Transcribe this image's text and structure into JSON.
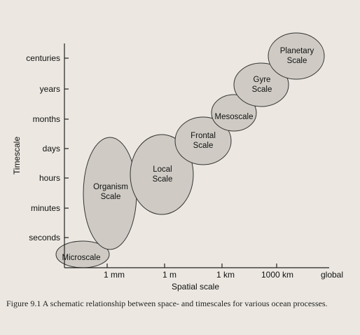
{
  "chart_data": {
    "type": "diagram",
    "xlabel": "Spatial scale",
    "ylabel": "Timescale",
    "x_ticks": [
      "1 mm",
      "1 m",
      "1 km",
      "1000 km",
      "global"
    ],
    "y_ticks": [
      "centuries",
      "years",
      "months",
      "days",
      "hours",
      "minutes",
      "seconds"
    ],
    "processes": [
      {
        "id": "microscale",
        "label": "Microscale"
      },
      {
        "id": "organism",
        "label": "Organism\nScale"
      },
      {
        "id": "local",
        "label": "Local\nScale"
      },
      {
        "id": "frontal",
        "label": "Frontal\nScale"
      },
      {
        "id": "mesoscale",
        "label": "Mesoscale"
      },
      {
        "id": "gyre",
        "label": "Gyre\nScale"
      },
      {
        "id": "planetary",
        "label": "Planetary\nScale"
      }
    ]
  },
  "caption": {
    "text": "Figure 9.1  A schematic relationship between space- and timescales for various ocean processes."
  }
}
